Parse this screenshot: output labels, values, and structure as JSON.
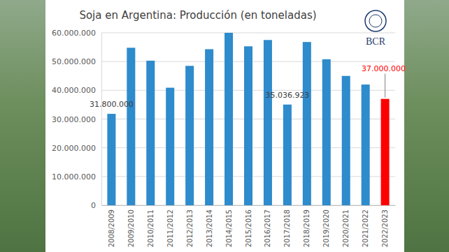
{
  "chart_data": {
    "type": "bar",
    "title": "Soja en Argentina: Producción (en toneladas)",
    "categories": [
      "2008/2009",
      "2009/2010",
      "2010/2011",
      "2011/2012",
      "2012/2013",
      "2013/2014",
      "2014/2015",
      "2015/2016",
      "2016/2017",
      "2017/2018",
      "2018/2019",
      "2019/2020",
      "2020/2021",
      "2021/2022",
      "2022/2023"
    ],
    "values": [
      31800000,
      54800000,
      50300000,
      40900000,
      48500000,
      54300000,
      60000000,
      55300000,
      57500000,
      35036923,
      56800000,
      50800000,
      45000000,
      42000000,
      37000000
    ],
    "value_labels": [
      "31.800.000",
      null,
      null,
      null,
      null,
      null,
      null,
      null,
      null,
      "35.036.923",
      null,
      null,
      null,
      null,
      "37.000.000"
    ],
    "color": "#2e8bcc",
    "colors": [
      "#2e8bcc",
      "#2e8bcc",
      "#2e8bcc",
      "#2e8bcc",
      "#2e8bcc",
      "#2e8bcc",
      "#2e8bcc",
      "#2e8bcc",
      "#2e8bcc",
      "#2e8bcc",
      "#2e8bcc",
      "#2e8bcc",
      "#2e8bcc",
      "#2e8bcc",
      "#ff0000"
    ],
    "ylim": [
      0,
      60000000
    ],
    "yticks": [
      0,
      {
        "value": 10000000,
        "label": "10.000.000"
      },
      {
        "value": 20000000,
        "label": "20.000.000"
      },
      {
        "value": 30000000,
        "label": "30.000.000"
      },
      {
        "value": 40000000,
        "label": "40.000.000"
      },
      {
        "value": 50000000,
        "label": "50.000.000"
      },
      {
        "value": 60000000,
        "label": "60.000.000"
      }
    ],
    "grid": true,
    "data_labels": true,
    "annotations": [
      "BCR"
    ]
  }
}
